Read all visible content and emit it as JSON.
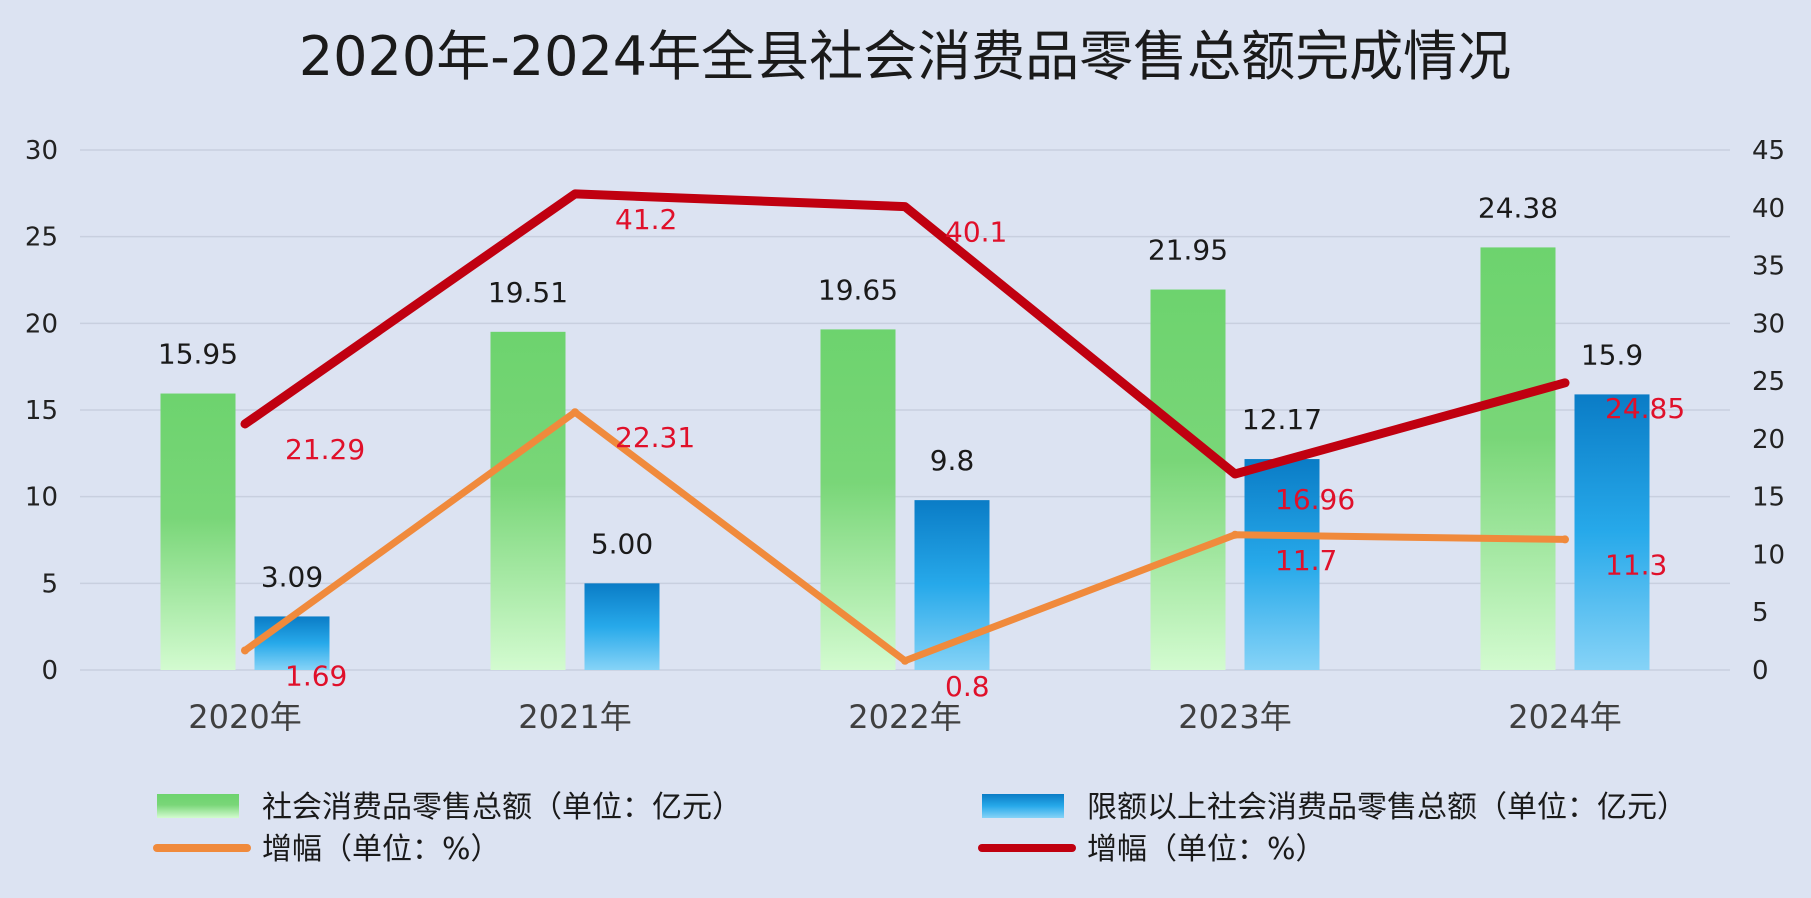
{
  "chart_data": {
    "type": "bar",
    "title": "2020年-2024年全县社会消费品零售总额完成情况",
    "categories": [
      "2020年",
      "2021年",
      "2022年",
      "2023年",
      "2024年"
    ],
    "y_left": {
      "min": 0,
      "max": 30,
      "ticks": [
        0,
        5,
        10,
        15,
        20,
        25,
        30
      ]
    },
    "y_right": {
      "min": 0,
      "max": 45,
      "ticks": [
        0,
        5,
        10,
        15,
        20,
        25,
        30,
        35,
        40,
        45
      ]
    },
    "grid": true,
    "legend_position": "bottom",
    "series": [
      {
        "name": "社会消费品零售总额（单位：亿元）",
        "kind": "bar",
        "axis": "left",
        "color": "#6dd36e",
        "values": [
          15.95,
          19.51,
          19.65,
          21.95,
          24.38
        ],
        "labels": [
          "15.95",
          "19.51",
          "19.65",
          "21.95",
          "24.38"
        ]
      },
      {
        "name": "限额以上社会消费品零售总额（单位：亿元）",
        "kind": "bar",
        "axis": "left",
        "color": "#1a8fd6",
        "values": [
          3.09,
          5.0,
          9.8,
          12.17,
          15.9
        ],
        "labels": [
          "3.09",
          "5.00",
          "9.8",
          "12.17",
          "15.9"
        ]
      },
      {
        "name": "增幅（单位：%）",
        "kind": "line",
        "axis": "right",
        "color": "#f08a3c",
        "values": [
          1.69,
          22.31,
          0.8,
          11.7,
          11.3
        ],
        "labels": [
          "1.69",
          "22.31",
          "0.8",
          "11.7",
          "11.3"
        ]
      },
      {
        "name": "增幅（单位：%）",
        "kind": "line",
        "axis": "right",
        "color": "#c00010",
        "values": [
          21.29,
          41.2,
          40.1,
          16.96,
          24.85
        ],
        "labels": [
          "21.29",
          "41.2",
          "40.1",
          "16.96",
          "24.85"
        ]
      }
    ]
  }
}
